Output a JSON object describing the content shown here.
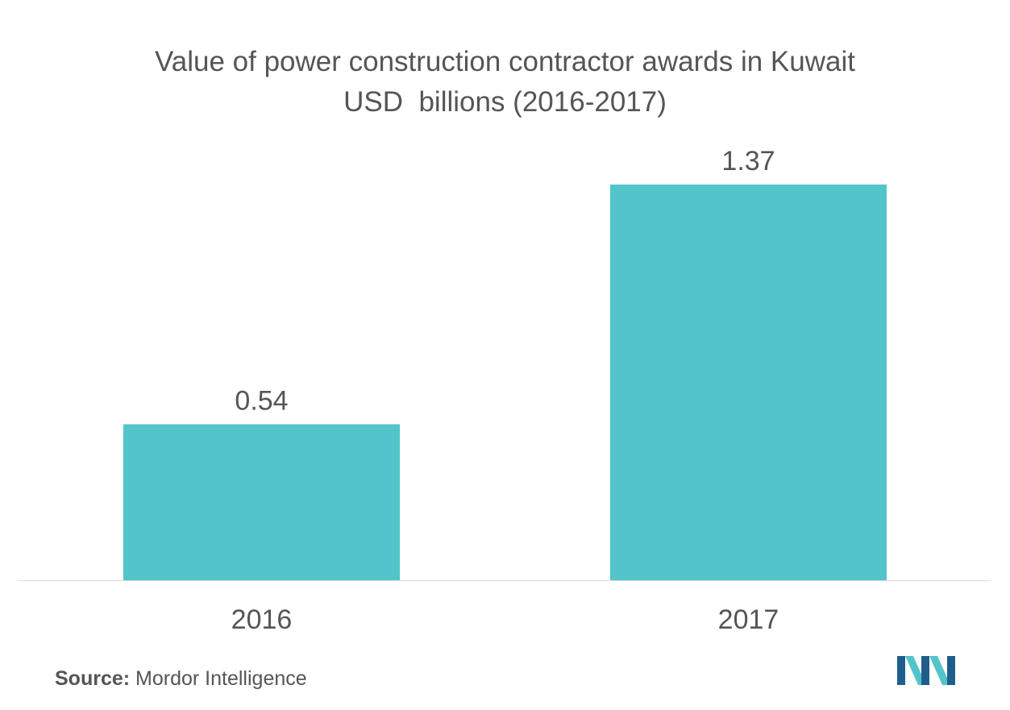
{
  "title_line1": "Value of power construction contractor awards in Kuwait",
  "title_line2": "USD  billions (2016-2017)",
  "source_label": "Source:",
  "source_text": "Mordor Intelligence",
  "colors": {
    "bar": "#52c4ca",
    "text": "#555555",
    "axis": "#dddddd",
    "logo_dark": "#1f5e8c",
    "logo_light": "#52c4ca"
  },
  "logo_icon": "mordor-intelligence-logo-icon",
  "chart_data": {
    "type": "bar",
    "title": "Value of power construction contractor awards in Kuwait USD  billions (2016-2017)",
    "categories": [
      "2016",
      "2017"
    ],
    "values": [
      0.54,
      1.37
    ],
    "data_labels": [
      "0.54",
      "1.37"
    ],
    "xlabel": "",
    "ylabel": "",
    "ylim": [
      0,
      1.37
    ],
    "grid": false,
    "legend": "none"
  }
}
